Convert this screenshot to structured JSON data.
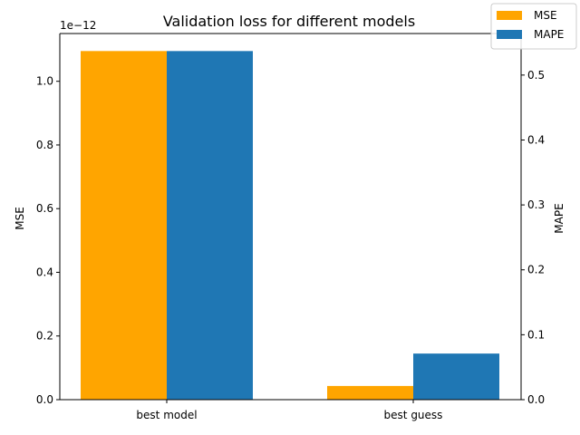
{
  "chart_data": {
    "type": "bar",
    "title": "Validation loss for different models",
    "categories": [
      "best model",
      "best guess"
    ],
    "series": [
      {
        "name": "MSE",
        "axis": "left",
        "color": "#ffa500",
        "values": [
          1.095e-12,
          4.3e-14
        ]
      },
      {
        "name": "MAPE",
        "axis": "right",
        "color": "#1f77b4",
        "values": [
          0.537,
          0.071
        ]
      }
    ],
    "y_left": {
      "label": "MSE",
      "offset_text": "1e−12",
      "ylim": [
        0,
        1.15
      ],
      "ticks": [
        0.0,
        0.2,
        0.4,
        0.6,
        0.8,
        1.0
      ],
      "tick_labels": [
        "0.0",
        "0.2",
        "0.4",
        "0.6",
        "0.8",
        "1.0"
      ]
    },
    "y_right": {
      "label": "MAPE",
      "ylim": [
        0,
        0.564
      ],
      "ticks": [
        0.0,
        0.1,
        0.2,
        0.3,
        0.4,
        0.5
      ],
      "tick_labels": [
        "0.0",
        "0.1",
        "0.2",
        "0.3",
        "0.4",
        "0.5"
      ]
    },
    "xlabel": "",
    "grid": false,
    "legend": {
      "placement": "top-right",
      "entries": [
        {
          "label": "MSE",
          "color": "#ffa500"
        },
        {
          "label": "MAPE",
          "color": "#1f77b4"
        }
      ]
    }
  }
}
